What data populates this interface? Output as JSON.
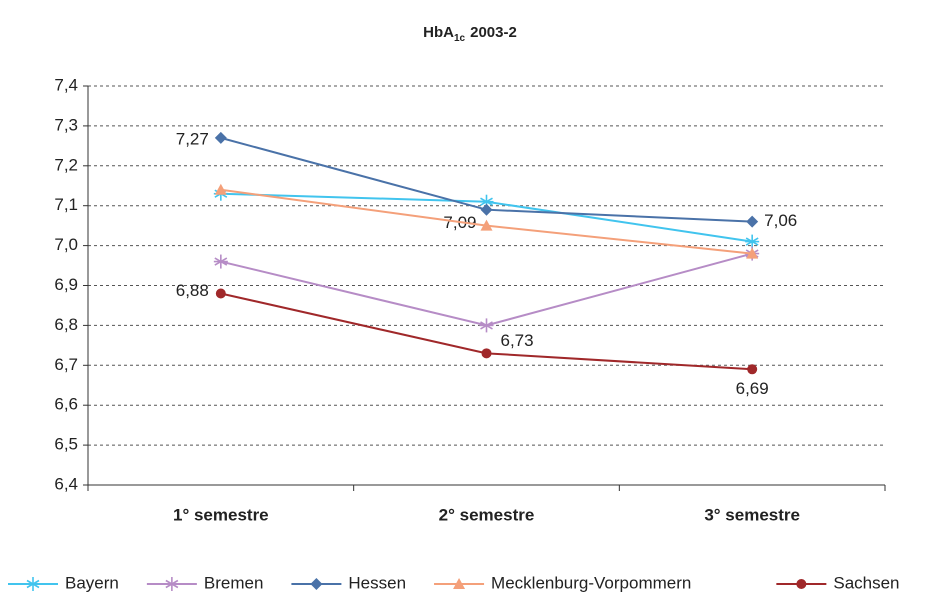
{
  "chart_data": {
    "type": "line",
    "title": "HbA",
    "title_subscript": "1c",
    "title_suffix": "2003-2",
    "categories": [
      "1° semestre",
      "2° semestre",
      "3° semestre"
    ],
    "ylim": [
      6.4,
      7.4
    ],
    "yticks": [
      {
        "value": 6.4,
        "label": "6,4"
      },
      {
        "value": 6.5,
        "label": "6,5"
      },
      {
        "value": 6.6,
        "label": "6,6"
      },
      {
        "value": 6.7,
        "label": "6,7"
      },
      {
        "value": 6.8,
        "label": "6,8"
      },
      {
        "value": 6.9,
        "label": "6,9"
      },
      {
        "value": 7.0,
        "label": "7,0"
      },
      {
        "value": 7.1,
        "label": "7,1"
      },
      {
        "value": 7.2,
        "label": "7,2"
      },
      {
        "value": 7.3,
        "label": "7,3"
      },
      {
        "value": 7.4,
        "label": "7,4"
      }
    ],
    "grid": true,
    "legend": "bottom",
    "series": [
      {
        "name": "Bayern",
        "color": "#41c4ee",
        "marker": "asterisk",
        "values": [
          7.13,
          7.11,
          7.01
        ]
      },
      {
        "name": "Bremen",
        "color": "#b68cc6",
        "marker": "asterisk",
        "values": [
          6.96,
          6.8,
          6.98
        ]
      },
      {
        "name": "Hessen",
        "color": "#4a72a8",
        "marker": "diamond",
        "values": [
          7.27,
          7.09,
          7.06
        ],
        "value_labels": [
          "7,27",
          "7,09",
          "7,06"
        ]
      },
      {
        "name": "Mecklenburg-Vorpommern",
        "color": "#f4a07a",
        "marker": "triangle",
        "values": [
          7.14,
          7.05,
          6.98
        ]
      },
      {
        "name": "Sachsen",
        "color": "#a0282a",
        "marker": "circle",
        "values": [
          6.88,
          6.73,
          6.69
        ],
        "value_labels": [
          "6,88",
          "6,73",
          "6,69"
        ]
      }
    ]
  }
}
